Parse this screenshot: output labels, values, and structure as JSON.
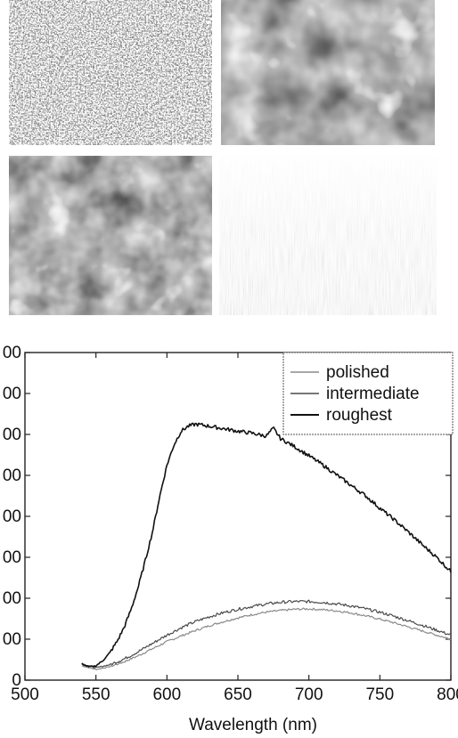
{
  "micrographs": [
    {
      "id": "m1",
      "texture": "fine-speckle"
    },
    {
      "id": "m2",
      "texture": "coarse-blobs"
    },
    {
      "id": "m3",
      "texture": "coarse-blobs"
    },
    {
      "id": "m4",
      "texture": "vertical-streaks"
    }
  ],
  "chart_data": {
    "type": "line",
    "title": "",
    "xlabel": "Wavelength (nm)",
    "ylabel": "",
    "xlim": [
      500,
      800
    ],
    "ylim": [
      0,
      800
    ],
    "xticks": [
      "500",
      "550",
      "600",
      "650",
      "700",
      "750",
      "800"
    ],
    "yticks": [
      "0",
      "00",
      "00",
      "00",
      "00",
      "00",
      "00",
      "00",
      "00"
    ],
    "legend_position": "top-right",
    "grid": false,
    "series": [
      {
        "name": "polished",
        "color": "#8a8a8a",
        "x": [
          540,
          550,
          560,
          570,
          580,
          590,
          600,
          610,
          620,
          630,
          640,
          650,
          660,
          670,
          680,
          690,
          700,
          710,
          720,
          730,
          740,
          750,
          760,
          770,
          780,
          790,
          800
        ],
        "y": [
          35,
          26,
          33,
          45,
          60,
          77,
          94,
          108,
          121,
          133,
          143,
          152,
          160,
          166,
          170,
          173,
          174,
          172,
          169,
          164,
          157,
          149,
          140,
          130,
          120,
          110,
          100
        ]
      },
      {
        "name": "intermediate",
        "color": "#4a4a4a",
        "x": [
          540,
          550,
          560,
          570,
          580,
          590,
          600,
          610,
          620,
          630,
          640,
          650,
          660,
          670,
          680,
          690,
          700,
          710,
          720,
          730,
          740,
          750,
          760,
          770,
          780,
          790,
          800
        ],
        "y": [
          40,
          30,
          38,
          52,
          70,
          90,
          110,
          128,
          143,
          155,
          165,
          173,
          180,
          186,
          190,
          192,
          192,
          190,
          186,
          181,
          174,
          166,
          156,
          145,
          134,
          122,
          110
        ]
      },
      {
        "name": "roughest",
        "color": "#111111",
        "x": [
          540,
          545,
          550,
          555,
          560,
          565,
          570,
          575,
          580,
          585,
          590,
          595,
          600,
          605,
          610,
          615,
          620,
          625,
          630,
          640,
          650,
          660,
          670,
          675,
          680,
          690,
          700,
          710,
          720,
          730,
          740,
          750,
          760,
          770,
          780,
          790,
          800
        ],
        "y": [
          40,
          32,
          35,
          48,
          68,
          95,
          130,
          175,
          230,
          295,
          365,
          450,
          525,
          575,
          608,
          620,
          625,
          623,
          620,
          614,
          608,
          603,
          596,
          615,
          590,
          570,
          548,
          525,
          500,
          475,
          450,
          420,
          392,
          362,
          330,
          300,
          265
        ]
      }
    ]
  }
}
